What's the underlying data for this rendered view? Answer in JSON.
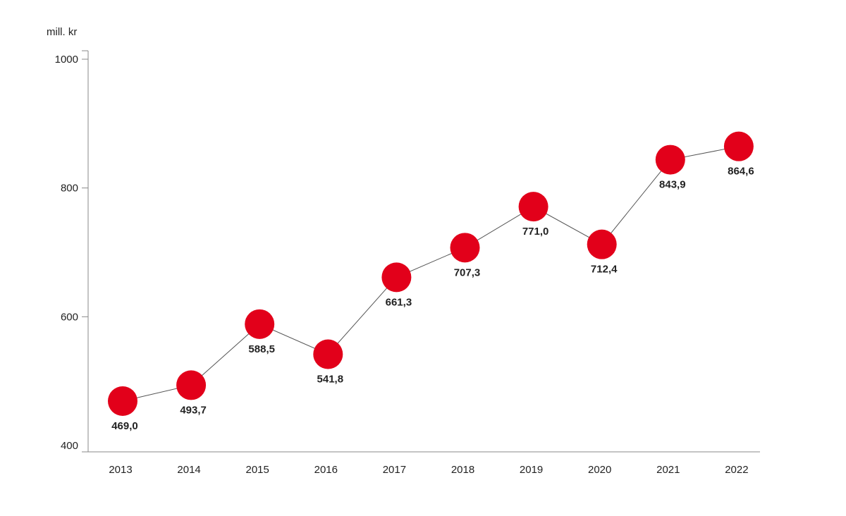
{
  "chart_data": {
    "type": "line",
    "title": "",
    "ylabel": "mill. kr",
    "xlabel": "",
    "ylim": [
      400,
      1000
    ],
    "y_ticks": [
      "1000",
      "800",
      "600",
      "400"
    ],
    "y_tick_values": [
      1000,
      800,
      600,
      400
    ],
    "categories": [
      "2013",
      "2014",
      "2015",
      "2016",
      "2017",
      "2018",
      "2019",
      "2020",
      "2021",
      "2022"
    ],
    "values": [
      469.0,
      493.7,
      588.5,
      541.8,
      661.3,
      707.3,
      771.0,
      712.4,
      843.9,
      864.6
    ],
    "data_labels": [
      "469,0",
      "493,7",
      "588,5",
      "541,8",
      "661,3",
      "707,3",
      "771,0",
      "712,4",
      "843,9",
      "864,6"
    ],
    "marker_color": "#e2001a",
    "line_color": "#555555",
    "axis_color": "#888888",
    "grid": false,
    "legend": "none"
  }
}
